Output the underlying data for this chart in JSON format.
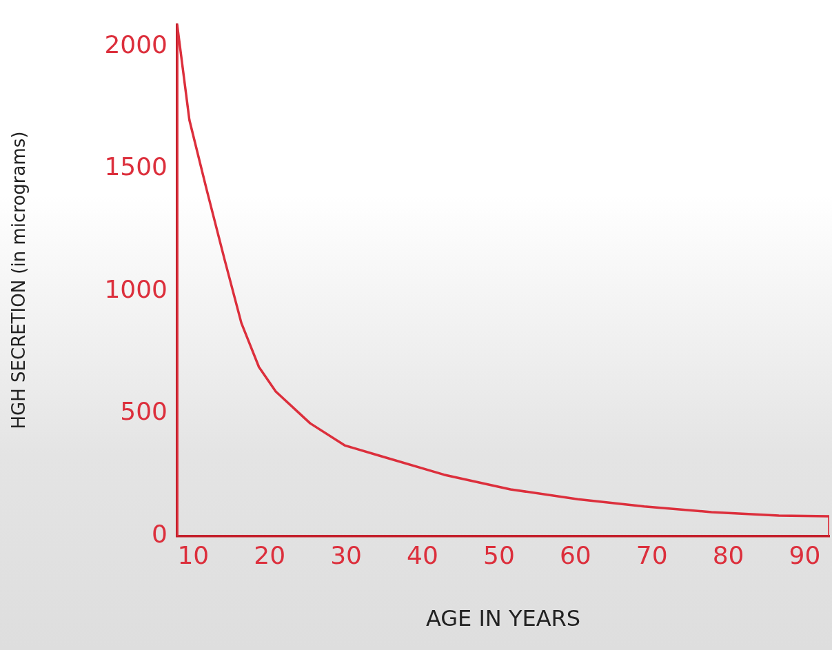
{
  "chart_data": {
    "type": "line",
    "xlabel": "AGE IN YEARS",
    "ylabel": "HGH SECRETION (in micrograms)",
    "x": [
      7.9,
      7.9,
      9.5,
      11.8,
      14.1,
      16.3,
      18.6,
      20.8,
      25.3,
      29.8,
      34.1,
      42.8,
      51.5,
      60.3,
      69.0,
      77.8,
      86.6,
      93.2,
      93.2
    ],
    "series": [
      {
        "color": "#dc2f3c",
        "values": [
          0,
          2090,
          1700,
          1410,
          1130,
          870,
          690,
          590,
          460,
          370,
          330,
          250,
          190,
          150,
          120,
          97,
          83,
          80,
          0
        ]
      }
    ],
    "xlim": [
      7.9,
      93.2
    ],
    "xticks": [
      10,
      20,
      30,
      40,
      50,
      60,
      70,
      80,
      90
    ],
    "ylim": [
      0,
      2090
    ],
    "yticks": [
      0,
      500,
      1000,
      1500,
      2000
    ],
    "grid": false,
    "legend": false,
    "marker": "none",
    "line_style": "solid"
  }
}
